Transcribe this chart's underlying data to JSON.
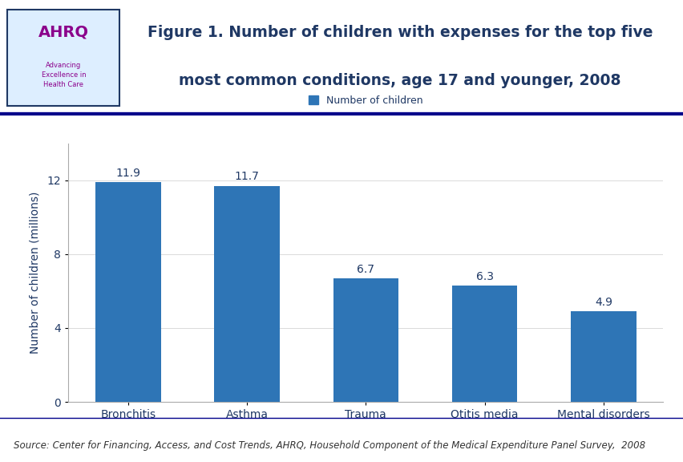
{
  "categories": [
    "Bronchitis",
    "Asthma",
    "Trauma",
    "Otitis media",
    "Mental disorders"
  ],
  "values": [
    11.9,
    11.7,
    6.7,
    6.3,
    4.9
  ],
  "bar_color": "#2E75B6",
  "title_line1": "Figure 1. Number of children with expenses for the top five",
  "title_line2": "most common conditions, age 17 and younger, 2008",
  "title_color": "#1F3864",
  "ylabel": "Number of children (millions)",
  "ylabel_color": "#1F3864",
  "ylim": [
    0,
    14
  ],
  "yticks": [
    0,
    4,
    8,
    12
  ],
  "legend_label": "Number of children",
  "legend_color": "#2E75B6",
  "source_text": "Source: Center for Financing, Access, and Cost Trends, AHRQ, Household Component of the Medical Expenditure Panel Survey,  2008",
  "source_fontsize": 8.5,
  "bar_label_color": "#1F3864",
  "bar_label_fontsize": 10,
  "tick_label_color": "#1F3864",
  "tick_label_fontsize": 10,
  "header_line_color": "#00008B",
  "background_color": "#FFFFFF",
  "plot_background": "#FFFFFF",
  "grid_color": "#CCCCCC",
  "logo_border_color": "#1F3864",
  "ahrq_color": "#8B008B",
  "advancing_color": "#8B008B"
}
